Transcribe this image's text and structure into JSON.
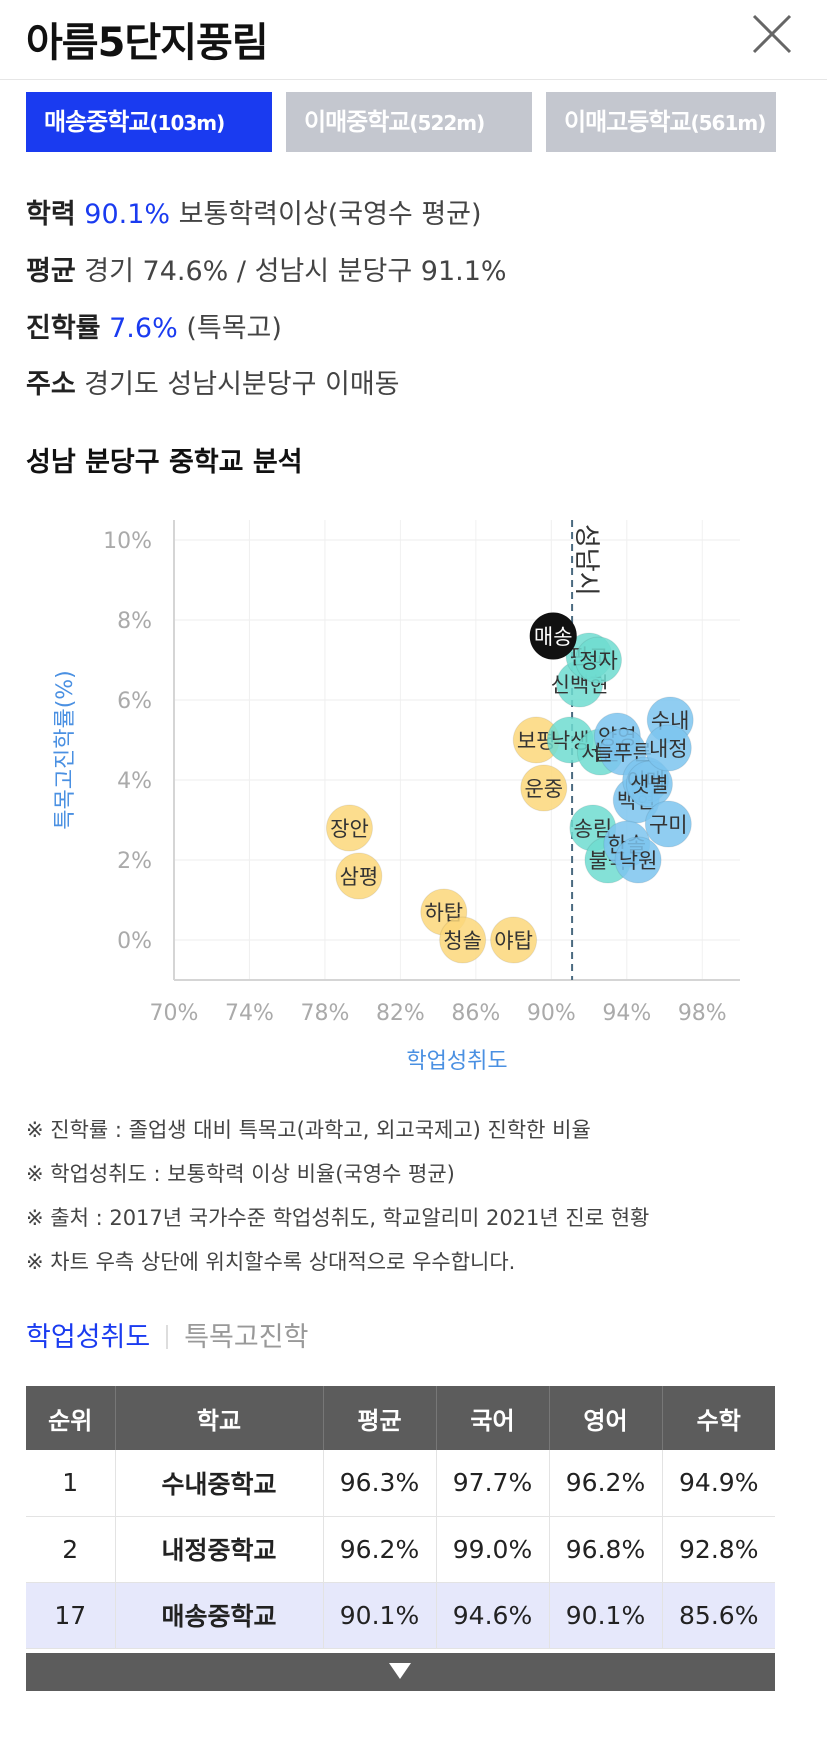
{
  "header": {
    "title": "아름5단지풍림",
    "close_icon": "close-icon"
  },
  "tabs": [
    {
      "name": "매송중학교",
      "distance": "(103m)",
      "active": true
    },
    {
      "name": "이매중학교",
      "distance": "(522m)",
      "active": false
    },
    {
      "name": "이매고등학교",
      "distance": "(561m)",
      "active": false
    }
  ],
  "info": {
    "academic": {
      "label": "학력",
      "value": "90.1%",
      "desc": "보통학력이상(국영수 평균)"
    },
    "average": {
      "label": "평균",
      "text": "경기 74.6% / 성남시 분당구 91.1%"
    },
    "advance": {
      "label": "진학률",
      "value": "7.6%",
      "desc": "(특목고)"
    },
    "address": {
      "label": "주소",
      "text": "경기도 성남시분당구 이매동"
    }
  },
  "analysis": {
    "title": "성남 분당구 중학교 분석"
  },
  "chart_data": {
    "type": "scatter",
    "xlabel": "학업성취도",
    "ylabel": "특목고진학률(%)",
    "xlim": [
      70,
      100
    ],
    "ylim": [
      -1,
      10.5
    ],
    "x_ticks": [
      "70%",
      "74%",
      "78%",
      "82%",
      "86%",
      "90%",
      "94%",
      "98%"
    ],
    "x_tick_values": [
      70,
      74,
      78,
      82,
      86,
      90,
      94,
      98
    ],
    "y_ticks": [
      "10%",
      "8%",
      "6%",
      "4%",
      "2%",
      "0%"
    ],
    "y_tick_values": [
      10,
      8,
      6,
      4,
      2,
      0
    ],
    "reference_line": {
      "x": 91.1,
      "label": "성남시"
    },
    "grid": true,
    "colors": {
      "black": "#111111",
      "teal": "#6fdcd0",
      "blue": "#7cc4ee",
      "yellow": "#fbd77a",
      "axis_label": "#4a90e2",
      "ref_line": "#4a6a80"
    },
    "points": [
      {
        "label": "장안",
        "x": 79.3,
        "y": 2.8,
        "group": "yellow"
      },
      {
        "label": "삼평",
        "x": 79.8,
        "y": 1.6,
        "group": "yellow"
      },
      {
        "label": "하탑",
        "x": 84.3,
        "y": 0.7,
        "group": "yellow"
      },
      {
        "label": "청솔",
        "x": 85.3,
        "y": 0.0,
        "group": "yellow"
      },
      {
        "label": "야탑",
        "x": 88.0,
        "y": 0.0,
        "group": "yellow"
      },
      {
        "label": "보평",
        "x": 89.2,
        "y": 5.0,
        "group": "yellow"
      },
      {
        "label": "운중",
        "x": 89.6,
        "y": 3.8,
        "group": "yellow"
      },
      {
        "label": "송림",
        "x": 92.2,
        "y": 2.8,
        "group": "teal"
      },
      {
        "label": "불곡",
        "x": 93.0,
        "y": 2.0,
        "group": "teal"
      },
      {
        "label": "낙생",
        "x": 91.0,
        "y": 5.0,
        "group": "teal"
      },
      {
        "label": "서현",
        "x": 92.6,
        "y": 4.7,
        "group": "teal"
      },
      {
        "label": "신백현",
        "x": 91.5,
        "y": 6.4,
        "group": "teal"
      },
      {
        "label": "판교",
        "x": 92.0,
        "y": 7.1,
        "group": "teal"
      },
      {
        "label": "정자",
        "x": 92.5,
        "y": 7.0,
        "group": "teal"
      },
      {
        "label": "양영",
        "x": 93.5,
        "y": 5.1,
        "group": "blue"
      },
      {
        "label": "늘푸른",
        "x": 93.8,
        "y": 4.7,
        "group": "blue"
      },
      {
        "label": "백현",
        "x": 94.5,
        "y": 3.5,
        "group": "blue"
      },
      {
        "label": "이매",
        "x": 95.0,
        "y": 4.0,
        "group": "blue"
      },
      {
        "label": "샛별",
        "x": 95.2,
        "y": 3.9,
        "group": "blue"
      },
      {
        "label": "한솔",
        "x": 94.0,
        "y": 2.4,
        "group": "blue"
      },
      {
        "label": "낙원",
        "x": 94.6,
        "y": 2.0,
        "group": "blue"
      },
      {
        "label": "구미",
        "x": 96.2,
        "y": 2.9,
        "group": "blue"
      },
      {
        "label": "수내",
        "x": 96.3,
        "y": 5.5,
        "group": "blue"
      },
      {
        "label": "내정",
        "x": 96.2,
        "y": 4.8,
        "group": "blue"
      },
      {
        "label": "매송",
        "x": 90.1,
        "y": 7.6,
        "group": "black"
      }
    ]
  },
  "notes": [
    "※ 진학률 : 졸업생 대비 특목고(과학고, 외고국제고) 진학한 비율",
    "※ 학업성취도 : 보통학력 이상 비율(국영수 평균)",
    "※ 출처 : 2017년 국가수준 학업성취도, 학교알리미 2021년 진로 현황",
    "※ 차트 우측 상단에 위치할수록 상대적으로 우수합니다."
  ],
  "subtabs": {
    "first": "학업성취도",
    "second": "특목고진학"
  },
  "table": {
    "headers": [
      "순위",
      "학교",
      "평균",
      "국어",
      "영어",
      "수학"
    ],
    "rows": [
      [
        "1",
        "수내중학교",
        "96.3%",
        "97.7%",
        "96.2%",
        "94.9%"
      ],
      [
        "2",
        "내정중학교",
        "96.2%",
        "99.0%",
        "96.8%",
        "92.8%"
      ],
      [
        "17",
        "매송중학교",
        "90.1%",
        "94.6%",
        "90.1%",
        "85.6%"
      ]
    ],
    "highlight_row": 2
  },
  "more_icon": "triangle-down-icon"
}
